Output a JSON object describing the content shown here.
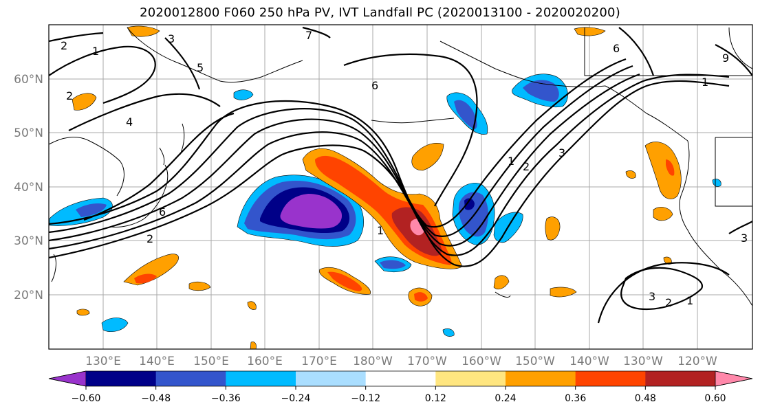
{
  "title": "2020012800 F060 250 hPa PV, IVT Landfall PC (2020013100 - 2020020200)",
  "map": {
    "lat_ticks": [
      "20°N",
      "30°N",
      "40°N",
      "50°N",
      "60°N"
    ],
    "lon_ticks": [
      "130°E",
      "140°E",
      "150°E",
      "160°E",
      "170°E",
      "180°W",
      "170°W",
      "160°W",
      "150°W",
      "140°W",
      "130°W",
      "120°W"
    ],
    "contour_labels": [
      "2",
      "1",
      "3",
      "5",
      "2",
      "4",
      "6",
      "2",
      "1",
      "6",
      "7",
      "1",
      "2",
      "3",
      "6",
      "9",
      "1",
      "3",
      "2",
      "1",
      "3"
    ]
  },
  "colorbar": {
    "tick_labels": [
      "-0.60",
      "-0.48",
      "-0.36",
      "-0.24",
      "-0.12",
      "0.12",
      "0.24",
      "0.36",
      "0.48",
      "0.60"
    ],
    "colors": [
      "#9933cc",
      "#000088",
      "#3355cc",
      "#00bbff",
      "#aadeff",
      "#ffffff",
      "#ffe680",
      "#ffa000",
      "#ff4400",
      "#b22222",
      "#ff88aa"
    ]
  }
}
